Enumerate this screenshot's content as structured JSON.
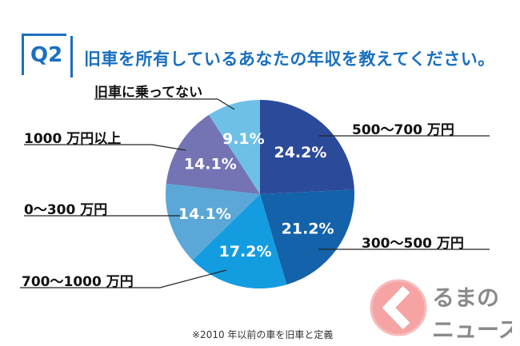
{
  "question_number": "Q2",
  "title": "旧車を所有しているあなたの年収を教えてください。",
  "note": "※2010 年以前の車を旧車と定義",
  "logo_text": [
    "くるまの",
    "ニュース"
  ],
  "chart_data": {
    "type": "pie",
    "title": "旧車を所有しているあなたの年収を教えてください。",
    "start": "top, clockwise",
    "slices": [
      {
        "label": "500〜700 万円",
        "value": 24.2,
        "display": "24.2%",
        "color": "#2c4a9a"
      },
      {
        "label": "300〜500 万円",
        "value": 21.2,
        "display": "21.2%",
        "color": "#1462aa"
      },
      {
        "label": "700〜1000 万円",
        "value": 17.2,
        "display": "17.2%",
        "color": "#139de0"
      },
      {
        "label": "0〜300 万円",
        "value": 14.1,
        "display": "14.1%",
        "color": "#5aa7d8"
      },
      {
        "label": "1000 万円以上",
        "value": 14.1,
        "display": "14.1%",
        "color": "#7474b4"
      },
      {
        "label": "旧車に乗ってない",
        "value": 9.1,
        "display": "9.1%",
        "color": "#6ec0e6"
      }
    ]
  }
}
